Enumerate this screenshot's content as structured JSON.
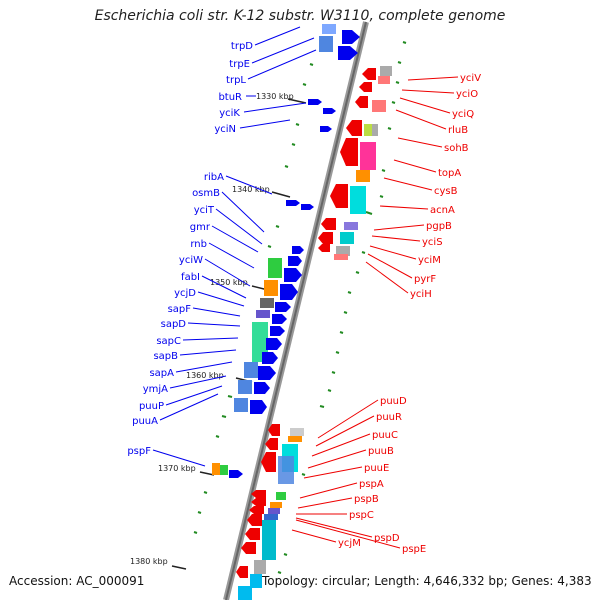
{
  "title": "Escherichia coli str. K-12 substr. W3110, complete genome",
  "accession": "Accession: AC_000091",
  "topology": "Topology: circular; Length: 4,646,332 bp; Genes: 4,383",
  "kbp_labels": [
    "1330 kbp",
    "1340 kbp",
    "1350 kbp",
    "1360 kbp",
    "1370 kbp",
    "1380 kbp"
  ],
  "colors": {
    "forward": "#0000ee",
    "reverse": "#ee0000",
    "backbone": "#888888",
    "cds_marker": "#228b22"
  },
  "genes_left": [
    "trpD",
    "trpE",
    "trpL",
    "btuR",
    "yciK",
    "yciN",
    "ribA",
    "osmB",
    "yciT",
    "gmr",
    "rnb",
    "yciW",
    "fabI",
    "ycjD",
    "sapF",
    "sapD",
    "sapC",
    "sapB",
    "sapA",
    "ymjA",
    "puuP",
    "puuA",
    "pspF"
  ],
  "genes_right": [
    "yciV",
    "yciO",
    "yciQ",
    "rluB",
    "sohB",
    "topA",
    "cysB",
    "acnA",
    "pgpB",
    "yciS",
    "yciM",
    "pyrF",
    "yciH",
    "puuD",
    "puuR",
    "puuC",
    "puuB",
    "puuE",
    "pspA",
    "pspB",
    "pspC",
    "pspD",
    "pspE",
    "ycjM"
  ]
}
